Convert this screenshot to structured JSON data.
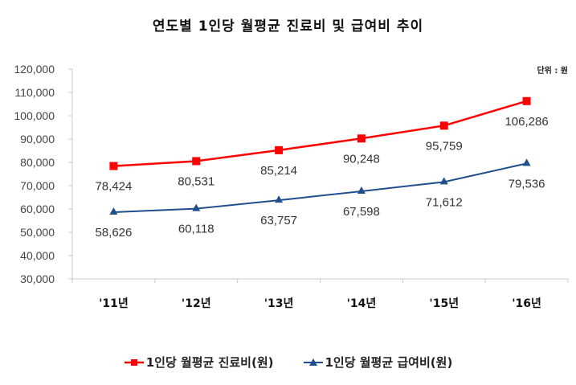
{
  "chart_data": {
    "type": "line",
    "title": "연도별 1인당 월평균 진료비 및 급여비 추이",
    "unit_label": "단위 : 원",
    "xlabel": "",
    "ylabel": "",
    "ylim": [
      30000,
      120000
    ],
    "yticks": [
      "120,000",
      "110,000",
      "100,000",
      "90,000",
      "80,000",
      "70,000",
      "60,000",
      "50,000",
      "40,000",
      "30,000"
    ],
    "categories": [
      "'11년",
      "'12년",
      "'13년",
      "'14년",
      "'15년",
      "'16년"
    ],
    "grid": false,
    "legend_position": "bottom",
    "series": [
      {
        "name": "1인당 월평균 진료비(원)",
        "color": "#ff0000",
        "marker": "square",
        "values": [
          78424,
          80531,
          85214,
          90248,
          95759,
          106286
        ],
        "labels": [
          "78,424",
          "80,531",
          "85,214",
          "90,248",
          "95,759",
          "106,286"
        ]
      },
      {
        "name": "1인당 월평균 급여비(원)",
        "color": "#1f4e8c",
        "marker": "triangle",
        "values": [
          58626,
          60118,
          63757,
          67598,
          71612,
          79536
        ],
        "labels": [
          "58,626",
          "60,118",
          "63,757",
          "67,598",
          "71,612",
          "79,536"
        ]
      }
    ]
  }
}
